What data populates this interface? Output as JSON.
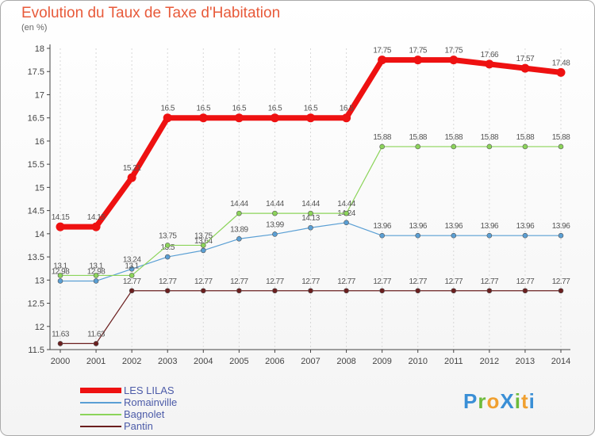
{
  "title": "Evolution du Taux de Taxe d'Habitation",
  "unit_label": "(en %)",
  "logo": {
    "text": "ProXiti",
    "letters": [
      {
        "ch": "P",
        "color": "#3a8fd6"
      },
      {
        "ch": "r",
        "color": "#6dbb3c"
      },
      {
        "ch": "o",
        "color": "#f0a030"
      },
      {
        "ch": "X",
        "color": "#3a8fd6"
      },
      {
        "ch": "i",
        "color": "#6dbb3c"
      },
      {
        "ch": "t",
        "color": "#f0a030"
      },
      {
        "ch": "i",
        "color": "#3a8fd6"
      }
    ]
  },
  "chart_data": {
    "type": "line",
    "title": "Evolution du Taux de Taxe d'Habitation",
    "ylabel": "(en %)",
    "xlabel": "",
    "x": [
      "2000",
      "2001",
      "2002",
      "2003",
      "2004",
      "2005",
      "2006",
      "2007",
      "2008",
      "2009",
      "2010",
      "2011",
      "2012",
      "2013",
      "2014"
    ],
    "ylim": [
      11.5,
      18
    ],
    "yticks": [
      "11.5",
      "12",
      "12.5",
      "13",
      "13.5",
      "14",
      "14.5",
      "15",
      "15.5",
      "16",
      "16.5",
      "17",
      "17.5",
      "18"
    ],
    "grid": "vertical dashed",
    "legend": "bottom-left",
    "series": [
      {
        "name": "Pantin",
        "color": "#6b1f1f",
        "width": 1.2,
        "values": [
          11.63,
          11.63,
          12.77,
          12.77,
          12.77,
          12.77,
          12.77,
          12.77,
          12.77,
          12.77,
          12.77,
          12.77,
          12.77,
          12.77,
          12.77
        ],
        "labels": [
          "11.63",
          "11.63",
          "12.77",
          "12.77",
          "12.77",
          "12.77",
          "12.77",
          "12.77",
          "12.77",
          "12.77",
          "12.77",
          "12.77",
          "12.77",
          "12.77",
          "12.77"
        ]
      },
      {
        "name": "Romainville",
        "color": "#5a9fd4",
        "width": 1.2,
        "values": [
          12.98,
          12.98,
          13.24,
          13.5,
          13.64,
          13.89,
          13.99,
          14.13,
          14.24,
          13.96,
          13.96,
          13.96,
          13.96,
          13.96,
          13.96
        ],
        "labels": [
          "12.98",
          "12.98",
          "13.24",
          "13.5",
          "13.64",
          "13.89",
          "13.99",
          "14.13",
          "14.24",
          "13.96",
          "13.96",
          "13.96",
          "13.96",
          "13.96",
          "13.96"
        ]
      },
      {
        "name": "Bagnolet",
        "color": "#8cd45a",
        "width": 1.2,
        "values": [
          13.1,
          13.1,
          13.1,
          13.75,
          13.75,
          14.44,
          14.44,
          14.44,
          14.44,
          15.88,
          15.88,
          15.88,
          15.88,
          15.88,
          15.88
        ],
        "labels": [
          "13.1",
          "13.1",
          "13.1",
          "13.75",
          "13.75",
          "14.44",
          "14.44",
          "14.44",
          "14.44",
          "15.88",
          "15.88",
          "15.88",
          "15.88",
          "15.88",
          "15.88"
        ]
      },
      {
        "name": "LES LILAS",
        "color": "#ee1111",
        "width": 7,
        "values": [
          14.15,
          14.15,
          15.21,
          16.5,
          16.5,
          16.5,
          16.5,
          16.5,
          16.5,
          17.75,
          17.75,
          17.75,
          17.66,
          17.57,
          17.48
        ],
        "labels": [
          "14.15",
          "14.15",
          "15.21",
          "16.5",
          "16.5",
          "16.5",
          "16.5",
          "16.5",
          "16.5",
          "17.75",
          "17.75",
          "17.75",
          "17.66",
          "17.57",
          "17.48"
        ]
      }
    ],
    "legend_order": [
      "LES LILAS",
      "Romainville",
      "Bagnolet",
      "Pantin"
    ]
  }
}
